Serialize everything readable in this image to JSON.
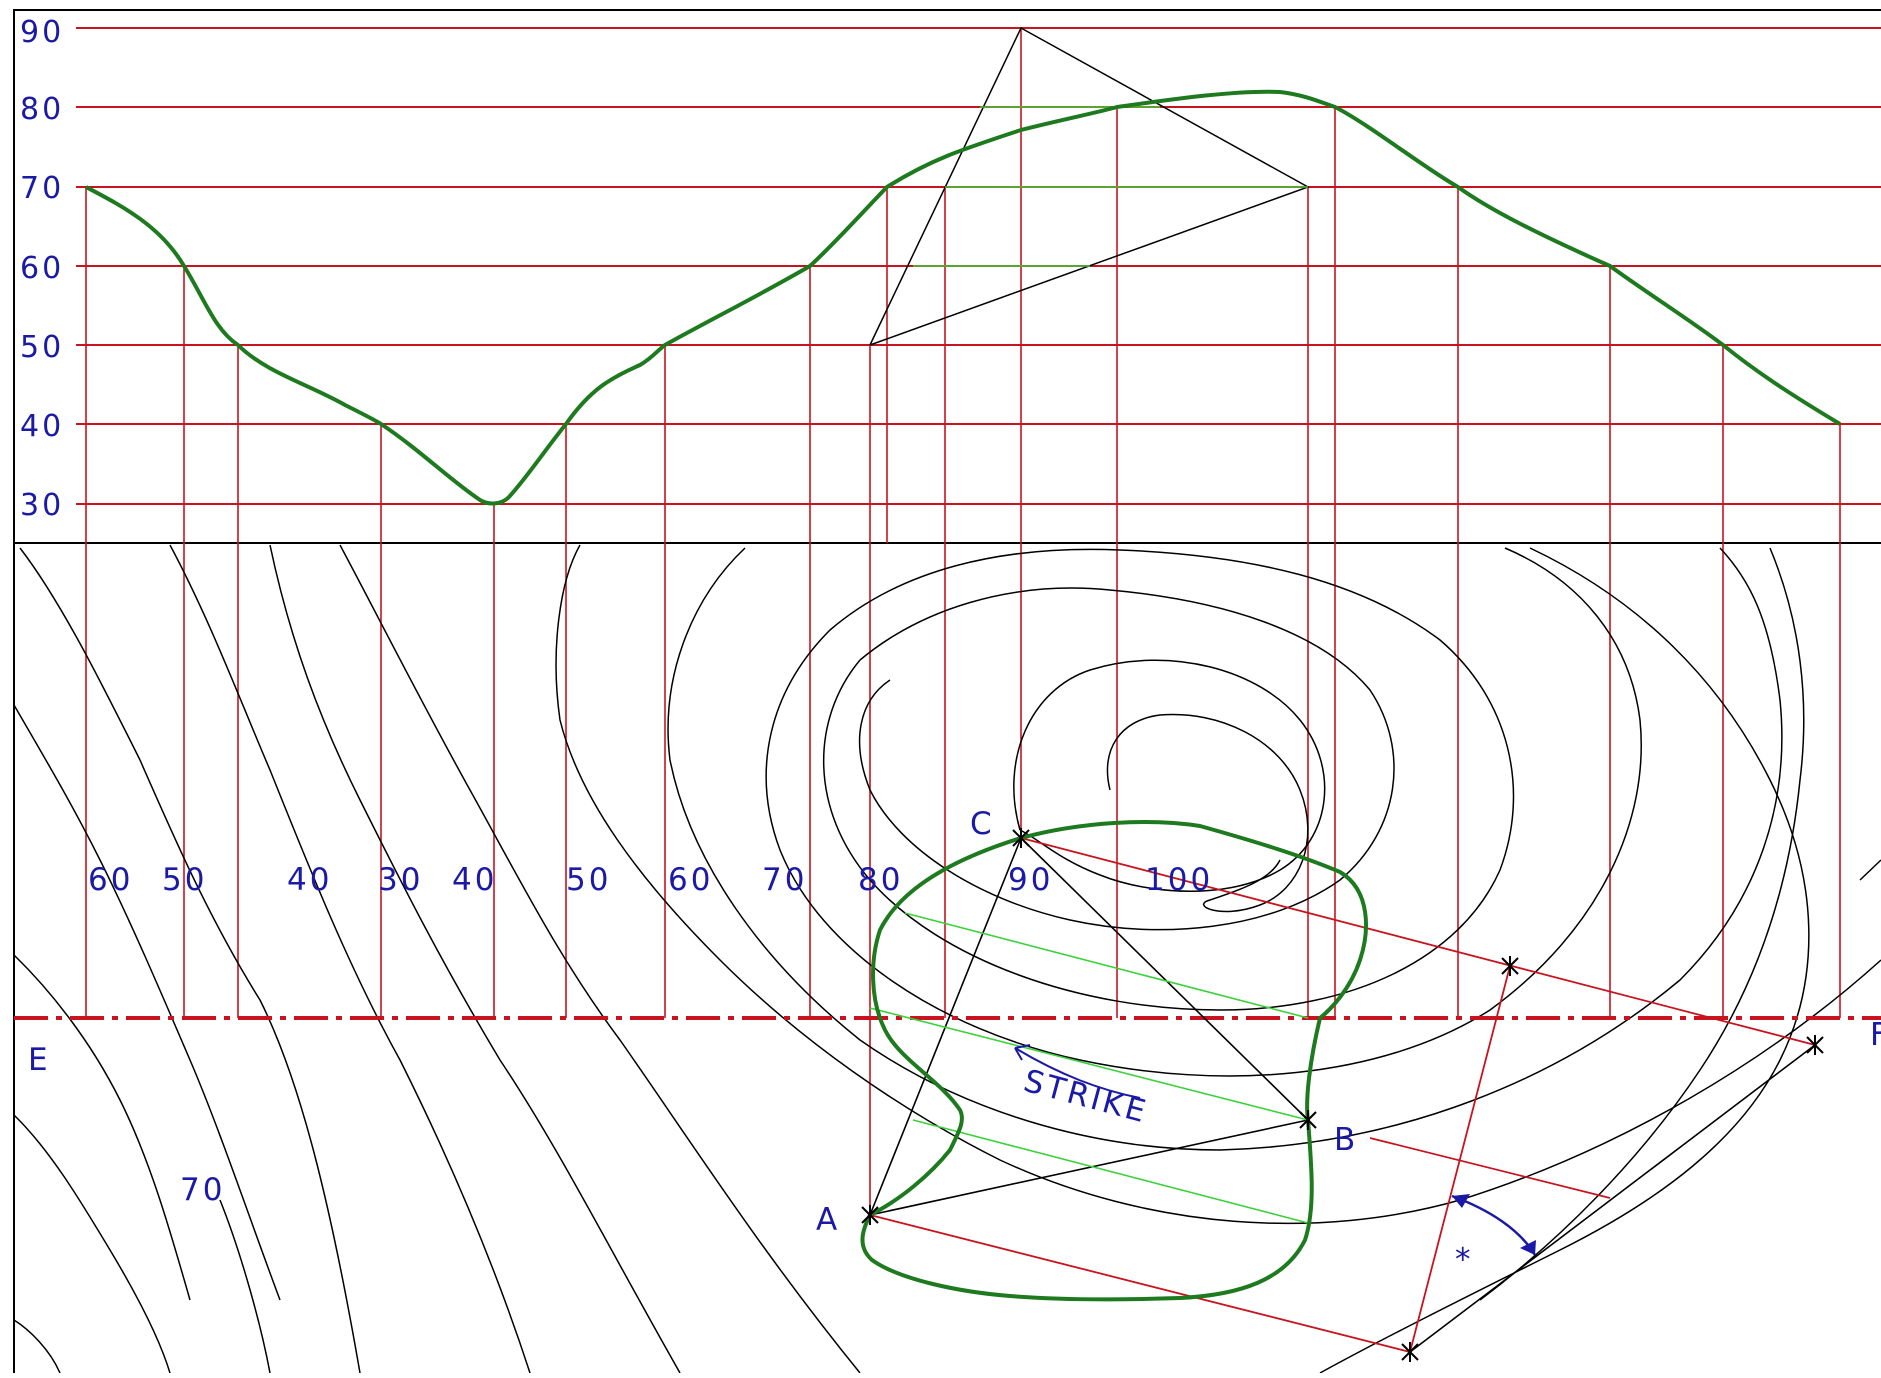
{
  "diagram": {
    "profile": {
      "elevation_ticks": [
        "90",
        "80",
        "70",
        "60",
        "50",
        "40",
        "30"
      ]
    },
    "map": {
      "section_line_labels": [
        "60",
        "50",
        "40",
        "30",
        "40",
        "50",
        "60",
        "70",
        "80",
        "90",
        "100"
      ],
      "extra_contour_label": "70",
      "point_labels": {
        "A": "A",
        "B": "B",
        "C": "C",
        "E": "E",
        "F": "F"
      },
      "strike_label": "STRIKE",
      "angle_symbol": "*"
    },
    "colors": {
      "grid_red": "#c8141e",
      "profile_green": "#1e7a1e",
      "construction_green": "#3ad23a",
      "annotation_blue": "#1a1aa6",
      "contour_black": "#000000"
    }
  }
}
